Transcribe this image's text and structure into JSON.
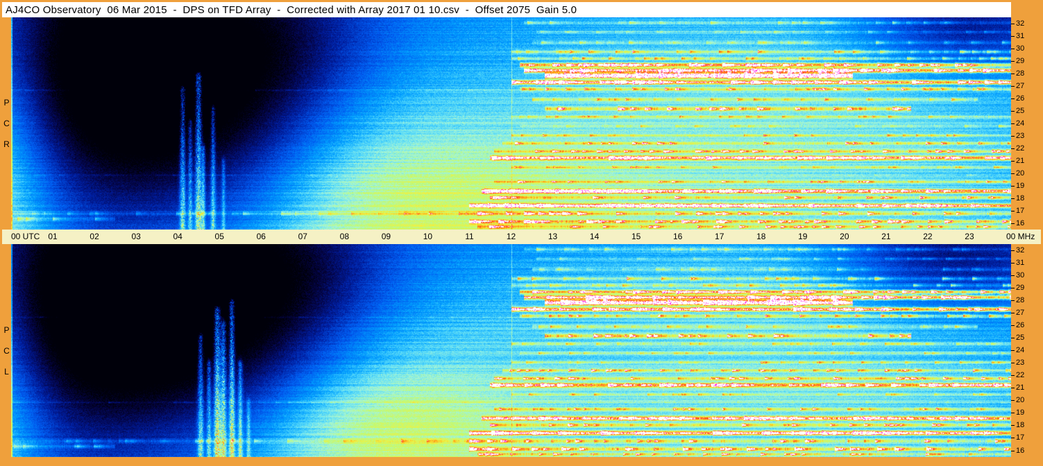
{
  "title": "AJ4CO Observatory  06 Mar 2015  -  DPS on TFD Array  -  Corrected with Array 2017 01 10.csv  -  Offset 2075  Gain 5.0",
  "colors": {
    "frame": "#EFA03C",
    "axis_bar": "#F5F1C5",
    "title_bg": "#FFFFFF",
    "text": "#000000"
  },
  "x_axis": {
    "unit": "UTC",
    "labels": [
      "00 UTC",
      "01",
      "02",
      "03",
      "04",
      "05",
      "06",
      "07",
      "08",
      "09",
      "10",
      "11",
      "12",
      "13",
      "14",
      "15",
      "16",
      "17",
      "18",
      "19",
      "20",
      "21",
      "22",
      "23",
      "00 MHz"
    ]
  },
  "y_axis": {
    "unit": "MHz",
    "labels": [
      "32",
      "31",
      "30",
      "29",
      "28",
      "27",
      "26",
      "25",
      "24",
      "23",
      "22",
      "21",
      "20",
      "19",
      "18",
      "17",
      "16"
    ]
  },
  "chart_data": {
    "type": "heatmap",
    "title": "Dual-polarization 24-hour dynamic radio spectrum",
    "x": {
      "label": "UTC hours",
      "range": [
        0,
        24
      ]
    },
    "y": {
      "label": "MHz",
      "range": [
        16,
        32
      ]
    },
    "legend_position": "none",
    "grid": false,
    "palette": [
      [
        0.0,
        0,
        0,
        10
      ],
      [
        0.08,
        4,
        4,
        70
      ],
      [
        0.18,
        0,
        30,
        160
      ],
      [
        0.3,
        0,
        90,
        240
      ],
      [
        0.42,
        0,
        160,
        255
      ],
      [
        0.52,
        90,
        220,
        250
      ],
      [
        0.6,
        165,
        245,
        215
      ],
      [
        0.68,
        190,
        250,
        120
      ],
      [
        0.78,
        245,
        240,
        60
      ],
      [
        0.87,
        255,
        160,
        20
      ],
      [
        0.94,
        255,
        60,
        30
      ],
      [
        1.0,
        255,
        255,
        255
      ]
    ],
    "vertical_line_hour": 12,
    "rfi_bands": [
      {
        "mhz": 31.6,
        "hw": 0.1,
        "start": 12.3,
        "end": 24,
        "strength": 0.26
      },
      {
        "mhz": 30.9,
        "hw": 0.08,
        "start": 12.6,
        "end": 24,
        "strength": 0.2
      },
      {
        "mhz": 30.1,
        "hw": 0.1,
        "start": 12.5,
        "end": 24,
        "strength": 0.26
      },
      {
        "mhz": 29.4,
        "hw": 0.11,
        "start": 12.0,
        "end": 24,
        "strength": 0.4
      },
      {
        "mhz": 28.9,
        "hw": 0.1,
        "start": 12.0,
        "end": 24,
        "strength": 0.38
      },
      {
        "mhz": 28.4,
        "hw": 0.12,
        "start": 12.2,
        "end": 24,
        "strength": 0.72
      },
      {
        "mhz": 28.0,
        "hw": 0.13,
        "start": 12.3,
        "end": 24,
        "strength": 0.95
      },
      {
        "mhz": 27.6,
        "hw": 0.15,
        "start": 12.8,
        "end": 20.2,
        "strength": 1.25
      },
      {
        "mhz": 27.1,
        "hw": 0.12,
        "start": 12.0,
        "end": 24,
        "strength": 0.85
      },
      {
        "mhz": 26.6,
        "hw": 0.1,
        "start": 12.2,
        "end": 24,
        "strength": 0.5
      },
      {
        "mhz": 26.5,
        "hw": 0.05,
        "start": 0.0,
        "end": 24,
        "strength": 0.1
      },
      {
        "mhz": 25.8,
        "hw": 0.09,
        "start": 12.5,
        "end": 23.2,
        "strength": 0.38
      },
      {
        "mhz": 25.1,
        "hw": 0.12,
        "start": 12.8,
        "end": 21.6,
        "strength": 0.68
      },
      {
        "mhz": 24.5,
        "hw": 0.08,
        "start": 12.0,
        "end": 24,
        "strength": 0.32
      },
      {
        "mhz": 23.8,
        "hw": 0.08,
        "start": 12.2,
        "end": 24,
        "strength": 0.28
      },
      {
        "mhz": 23.1,
        "hw": 0.09,
        "start": 12.0,
        "end": 24,
        "strength": 0.36
      },
      {
        "mhz": 22.5,
        "hw": 0.1,
        "start": 11.8,
        "end": 24,
        "strength": 0.5
      },
      {
        "mhz": 21.9,
        "hw": 0.1,
        "start": 11.6,
        "end": 24,
        "strength": 0.6
      },
      {
        "mhz": 21.4,
        "hw": 0.12,
        "start": 11.5,
        "end": 24,
        "strength": 0.75
      },
      {
        "mhz": 20.7,
        "hw": 0.08,
        "start": 12.0,
        "end": 24,
        "strength": 0.32
      },
      {
        "mhz": 20.1,
        "hw": 0.05,
        "start": 0.0,
        "end": 24,
        "strength": 0.11
      },
      {
        "mhz": 19.6,
        "hw": 0.09,
        "start": 11.6,
        "end": 24,
        "strength": 0.42
      },
      {
        "mhz": 18.9,
        "hw": 0.12,
        "start": 11.3,
        "end": 24,
        "strength": 0.8
      },
      {
        "mhz": 18.4,
        "hw": 0.1,
        "start": 11.5,
        "end": 24,
        "strength": 0.55
      },
      {
        "mhz": 17.8,
        "hw": 0.12,
        "start": 11.0,
        "end": 24,
        "strength": 0.85
      },
      {
        "mhz": 17.2,
        "hw": 0.12,
        "start": 0.0,
        "end": 11,
        "strength": 0.22
      },
      {
        "mhz": 17.2,
        "hw": 0.12,
        "start": 11.0,
        "end": 24,
        "strength": 0.55
      },
      {
        "mhz": 16.8,
        "hw": 0.12,
        "start": 0.0,
        "end": 2.5,
        "strength": 0.3
      },
      {
        "mhz": 16.6,
        "hw": 0.12,
        "start": 11.0,
        "end": 24,
        "strength": 0.7
      },
      {
        "mhz": 16.2,
        "hw": 0.1,
        "start": 11.2,
        "end": 24,
        "strength": 0.55
      }
    ],
    "panels": [
      {
        "name": "RCP",
        "seed": 20150306,
        "base": 0.295,
        "freq_slope": 0.05,
        "blobs": [
          {
            "t": -0.6,
            "f": 20.0,
            "st": 1.2,
            "sf": 9.0,
            "a": 0.3
          },
          {
            "t": 3.1,
            "f": 29.5,
            "st": 2.7,
            "sf": 6.0,
            "a": -0.34
          },
          {
            "t": 4.7,
            "f": 23.0,
            "st": 2.0,
            "sf": 5.0,
            "a": -0.22
          },
          {
            "t": 1.8,
            "f": 25.0,
            "st": 1.5,
            "sf": 7.0,
            "a": -0.15
          },
          {
            "t": 6.5,
            "f": 30.0,
            "st": 1.8,
            "sf": 4.0,
            "a": -0.14
          },
          {
            "t": 9.3,
            "f": 16.5,
            "st": 2.6,
            "sf": 4.5,
            "a": 0.2
          },
          {
            "t": 8.3,
            "f": 22.0,
            "st": 2.3,
            "sf": 6.0,
            "a": 0.08
          },
          {
            "t": 18.0,
            "f": 23.0,
            "st": 6.5,
            "sf": 11.0,
            "a": 0.24
          },
          {
            "t": 13.0,
            "f": 18.0,
            "st": 2.5,
            "sf": 4.0,
            "a": 0.08
          },
          {
            "t": 22.9,
            "f": 31.5,
            "st": 1.8,
            "sf": 2.6,
            "a": -0.26
          }
        ],
        "streaks": [
          {
            "h": 4.12,
            "w": 0.05,
            "f0": 16,
            "f1": 26.5,
            "a": 0.38
          },
          {
            "h": 4.3,
            "w": 0.04,
            "f0": 16,
            "f1": 24.0,
            "a": 0.3
          },
          {
            "h": 4.5,
            "w": 0.06,
            "f0": 16,
            "f1": 27.5,
            "a": 0.45
          },
          {
            "h": 4.62,
            "w": 0.03,
            "f0": 16,
            "f1": 22.0,
            "a": 0.28
          },
          {
            "h": 4.85,
            "w": 0.04,
            "f0": 16,
            "f1": 25.0,
            "a": 0.3
          },
          {
            "h": 5.1,
            "w": 0.03,
            "f0": 16,
            "f1": 21.0,
            "a": 0.22
          }
        ]
      },
      {
        "name": "LCP",
        "seed": 777123,
        "base": 0.29,
        "freq_slope": 0.05,
        "blobs": [
          {
            "t": -0.6,
            "f": 20.0,
            "st": 1.0,
            "sf": 9.0,
            "a": 0.26
          },
          {
            "t": 2.9,
            "f": 29.0,
            "st": 2.9,
            "sf": 6.5,
            "a": -0.36
          },
          {
            "t": 5.2,
            "f": 23.5,
            "st": 2.3,
            "sf": 5.5,
            "a": -0.24
          },
          {
            "t": 1.6,
            "f": 25.0,
            "st": 1.5,
            "sf": 7.0,
            "a": -0.14
          },
          {
            "t": 6.8,
            "f": 30.0,
            "st": 1.8,
            "sf": 4.0,
            "a": -0.15
          },
          {
            "t": 8.8,
            "f": 16.5,
            "st": 2.7,
            "sf": 5.0,
            "a": 0.26
          },
          {
            "t": 8.0,
            "f": 22.0,
            "st": 2.3,
            "sf": 6.0,
            "a": 0.09
          },
          {
            "t": 18.0,
            "f": 23.0,
            "st": 6.5,
            "sf": 11.0,
            "a": 0.23
          },
          {
            "t": 22.6,
            "f": 31.0,
            "st": 2.0,
            "sf": 3.0,
            "a": -0.28
          }
        ],
        "streaks": [
          {
            "h": 4.55,
            "w": 0.05,
            "f0": 16,
            "f1": 25.0,
            "a": 0.35
          },
          {
            "h": 4.75,
            "w": 0.04,
            "f0": 16,
            "f1": 23.0,
            "a": 0.3
          },
          {
            "h": 4.95,
            "w": 0.06,
            "f0": 16,
            "f1": 27.0,
            "a": 0.5
          },
          {
            "h": 5.1,
            "w": 0.05,
            "f0": 16,
            "f1": 26.0,
            "a": 0.42
          },
          {
            "h": 5.3,
            "w": 0.05,
            "f0": 16,
            "f1": 27.5,
            "a": 0.45
          },
          {
            "h": 5.5,
            "w": 0.04,
            "f0": 16,
            "f1": 23.0,
            "a": 0.3
          },
          {
            "h": 5.7,
            "w": 0.03,
            "f0": 16,
            "f1": 20.0,
            "a": 0.22
          }
        ]
      }
    ]
  }
}
